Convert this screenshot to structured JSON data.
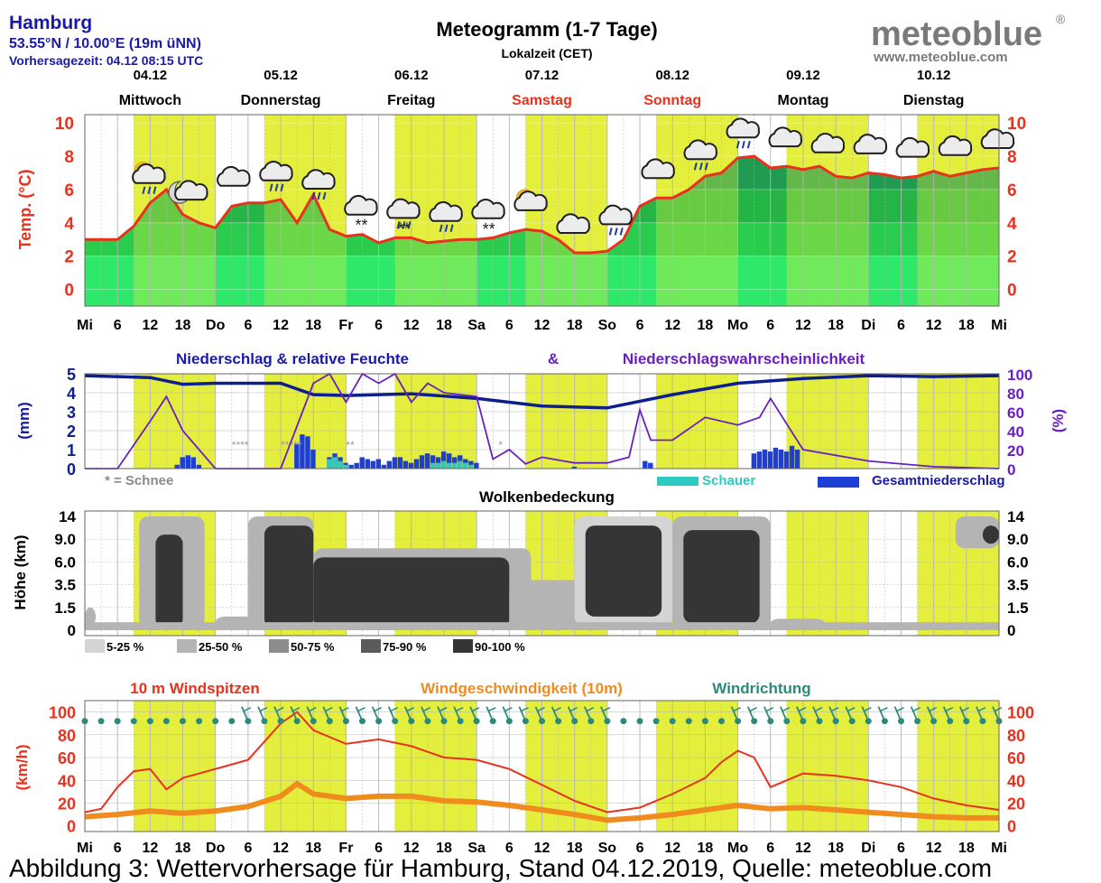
{
  "header": {
    "city": "Hamburg",
    "coords": "53.55°N / 10.00°E (19m üNN)",
    "forecast_time": "Vorhersagezeit: 04.12 08:15 UTC",
    "title": "Meteogramm (1-7 Tage)",
    "subtitle": "Lokalzeit (CET)",
    "brand": "meteoblue",
    "brand_reg": "®",
    "brand_url": "www.meteoblue.com"
  },
  "days": [
    {
      "date": "04.12",
      "name": "Mittwoch",
      "weekend": false
    },
    {
      "date": "05.12",
      "name": "Donnerstag",
      "weekend": false
    },
    {
      "date": "06.12",
      "name": "Freitag",
      "weekend": false
    },
    {
      "date": "07.12",
      "name": "Samstag",
      "weekend": true
    },
    {
      "date": "08.12",
      "name": "Sonntag",
      "weekend": true
    },
    {
      "date": "09.12",
      "name": "Montag",
      "weekend": false
    },
    {
      "date": "10.12",
      "name": "Dienstag",
      "weekend": false
    }
  ],
  "x_ticks": [
    "Mi",
    "6",
    "12",
    "18",
    "Do",
    "6",
    "12",
    "18",
    "Fr",
    "6",
    "12",
    "18",
    "Sa",
    "6",
    "12",
    "18",
    "So",
    "6",
    "12",
    "18",
    "Mo",
    "6",
    "12",
    "18",
    "Di",
    "6",
    "12",
    "18",
    "Mi"
  ],
  "colors": {
    "temp": "#e8321e",
    "day_band": "#e4ee3c",
    "grid": "#b4b4b4",
    "precip_total": "#1d3fd6",
    "showers": "#2ec9c0",
    "humidity": "#0e1f8c",
    "probability": "#6a1fc0",
    "gust": "#e8321e",
    "wind": "#f08c1e",
    "winddir": "#2a8a7c",
    "weekend": "#e8321e",
    "title_blue": "#1a1aa8"
  },
  "chart_data": [
    {
      "type": "area",
      "name": "temperature",
      "ylabel": "Temp. (°C)",
      "ylim": [
        -1,
        10.5
      ],
      "y_ticks": [
        "10",
        "8",
        "6",
        "4",
        "2",
        "0"
      ],
      "x_hours": [
        0,
        3,
        6,
        9,
        12,
        15,
        18,
        21,
        24,
        27,
        30,
        33,
        36,
        39,
        42,
        45,
        48,
        51,
        54,
        57,
        60,
        63,
        66,
        69,
        72,
        75,
        78,
        81,
        84,
        87,
        90,
        93,
        96,
        99,
        102,
        105,
        108,
        111,
        114,
        117,
        120,
        123,
        126,
        129,
        132,
        135,
        138,
        141,
        144,
        147,
        150,
        153,
        156,
        159,
        162,
        165,
        168
      ],
      "values": [
        3.0,
        3.0,
        3.0,
        3.8,
        5.2,
        6.0,
        4.5,
        4.0,
        3.7,
        5.0,
        5.2,
        5.2,
        5.4,
        4.0,
        5.7,
        3.6,
        3.2,
        3.3,
        2.8,
        3.1,
        3.1,
        2.8,
        2.9,
        3.0,
        3.0,
        3.1,
        3.4,
        3.6,
        3.5,
        3.0,
        2.2,
        2.2,
        2.3,
        3.0,
        5.0,
        5.5,
        5.5,
        6.0,
        6.8,
        7.0,
        7.9,
        8.0,
        7.3,
        7.4,
        7.2,
        7.4,
        6.8,
        6.7,
        7.0,
        6.9,
        6.7,
        6.8,
        7.1,
        6.8,
        7.0,
        7.2,
        7.3
      ],
      "weather_icons": [
        "sun-cloud-rain",
        "moon-cloud",
        "cloud",
        "cloud-rain",
        "cloud-rain",
        "cloud-snow",
        "cloud-sleet",
        "cloud-rain",
        "cloud-snow",
        "sun-cloud",
        "cloud",
        "cloud-rain",
        "cloud",
        "cloud-rain",
        "cloud-rain",
        "cloud",
        "cloud",
        "cloud",
        "cloud",
        "cloud",
        "cloud"
      ]
    },
    {
      "type": "bar",
      "name": "precipitation",
      "title_left": "Niederschlag & relative Feuchte",
      "title_amp": "&",
      "title_right": "Niederschlagswahrscheinlichkeit",
      "ylabel_left": "(mm)",
      "ylabel_right": "(%)",
      "ylim": [
        0,
        5
      ],
      "ylim_right": [
        0,
        100
      ],
      "y_ticks_left": [
        "5",
        "4",
        "3",
        "2",
        "1",
        "0"
      ],
      "y_ticks_right": [
        "100",
        "80",
        "60",
        "40",
        "20",
        "0"
      ],
      "snow_note": "* = Schnee",
      "legend": [
        "Schauer",
        "Gesamtniederschlag"
      ],
      "series": [
        {
          "name": "Gesamtniederschlag",
          "x_hours": [
            17,
            18,
            19,
            20,
            21,
            39,
            40,
            41,
            42,
            45,
            46,
            47,
            48,
            49,
            50,
            51,
            52,
            53,
            54,
            55,
            56,
            57,
            58,
            59,
            60,
            61,
            62,
            63,
            64,
            65,
            66,
            67,
            68,
            69,
            70,
            71,
            72,
            90,
            103,
            104,
            123,
            124,
            125,
            126,
            127,
            128,
            129,
            130,
            131
          ],
          "values": [
            0.2,
            0.6,
            0.7,
            0.6,
            0.2,
            1.3,
            1.8,
            1.7,
            1.0,
            0.6,
            0.8,
            0.6,
            0.3,
            0.2,
            0.3,
            0.6,
            0.5,
            0.4,
            0.5,
            0.2,
            0.4,
            0.6,
            0.6,
            0.4,
            0.3,
            0.5,
            0.7,
            0.8,
            0.7,
            0.6,
            0.9,
            0.8,
            0.6,
            0.7,
            0.5,
            0.4,
            0.3,
            0.1,
            0.4,
            0.3,
            0.8,
            0.9,
            1.0,
            0.9,
            1.1,
            1.0,
            0.9,
            1.2,
            1.0
          ]
        },
        {
          "name": "Schauer",
          "x_hours": [
            45,
            46,
            47,
            48,
            64,
            65,
            66,
            67,
            68,
            69,
            70,
            71
          ],
          "values": [
            0.5,
            0.6,
            0.4,
            0.2,
            0.3,
            0.3,
            0.4,
            0.3,
            0.3,
            0.4,
            0.3,
            0.2
          ]
        },
        {
          "name": "relative Feuchte (%)",
          "x_hours": [
            0,
            12,
            18,
            24,
            36,
            42,
            48,
            60,
            72,
            84,
            96,
            108,
            120,
            132,
            144,
            156,
            168
          ],
          "values": [
            98,
            96,
            89,
            90,
            90,
            78,
            77,
            79,
            74,
            66,
            64,
            78,
            90,
            95,
            98,
            97,
            98
          ]
        },
        {
          "name": "Niederschlagswahrscheinlichkeit (%)",
          "x_hours": [
            0,
            6,
            12,
            15,
            18,
            24,
            30,
            36,
            42,
            45,
            48,
            51,
            54,
            57,
            60,
            63,
            66,
            72,
            75,
            78,
            81,
            84,
            88,
            90,
            96,
            100,
            102,
            104,
            108,
            114,
            120,
            124,
            126,
            132,
            144,
            156,
            168
          ],
          "values": [
            0,
            0,
            50,
            76,
            40,
            0,
            0,
            0,
            90,
            100,
            70,
            100,
            90,
            100,
            70,
            90,
            80,
            76,
            10,
            20,
            5,
            12,
            8,
            6,
            6,
            12,
            62,
            30,
            30,
            54,
            46,
            54,
            74,
            20,
            8,
            2,
            0
          ]
        }
      ],
      "snow_hours": [
        "27",
        "30",
        "33",
        "36",
        "39",
        "42",
        "45",
        "48",
        "51",
        "54",
        "57",
        "60",
        "63",
        "66",
        "69",
        "72",
        "75",
        "78",
        "81",
        "84",
        "87",
        "90"
      ],
      "snow_marks": [
        "****",
        "*****",
        "**",
        "*"
      ]
    },
    {
      "type": "heatmap",
      "name": "clouds",
      "title": "Wolkenbedeckung",
      "ylabel": "Höhe (km)",
      "y_ticks": [
        "14",
        "9.0",
        "6.0",
        "3.5",
        "1.5",
        "0"
      ],
      "legend": [
        "5-25 %",
        "25-50 %",
        "50-75 %",
        "75-90 %",
        "90-100 %"
      ],
      "legend_colors": [
        "#d4d4d4",
        "#b4b4b4",
        "#8c8c8c",
        "#5a5a5a",
        "#353535"
      ]
    },
    {
      "type": "line",
      "name": "wind",
      "title_gust": "10 m Windspitzen",
      "title_speed": "Windgeschwindigkeit (10m)",
      "title_dir": "Windrichtung",
      "ylabel": "(km/h)",
      "ylim": [
        -5,
        110
      ],
      "y_ticks": [
        "100",
        "80",
        "60",
        "40",
        "20",
        "0"
      ],
      "series": [
        {
          "name": "10 m Windspitzen",
          "x_hours": [
            0,
            3,
            6,
            9,
            12,
            15,
            18,
            24,
            30,
            36,
            39,
            42,
            48,
            54,
            60,
            66,
            72,
            78,
            84,
            90,
            96,
            102,
            108,
            114,
            117,
            120,
            123,
            126,
            132,
            138,
            144,
            150,
            156,
            162,
            168
          ],
          "values": [
            12,
            15,
            34,
            48,
            50,
            32,
            42,
            50,
            58,
            90,
            100,
            84,
            72,
            76,
            70,
            60,
            58,
            50,
            36,
            22,
            12,
            16,
            28,
            42,
            56,
            66,
            60,
            34,
            46,
            44,
            40,
            34,
            24,
            18,
            14
          ]
        },
        {
          "name": "Windgeschwindigkeit (10m)",
          "x_hours": [
            0,
            6,
            12,
            18,
            24,
            30,
            36,
            39,
            42,
            48,
            54,
            60,
            66,
            72,
            78,
            84,
            90,
            96,
            102,
            108,
            114,
            120,
            126,
            132,
            138,
            144,
            150,
            156,
            162,
            168
          ],
          "values": [
            8,
            10,
            13,
            11,
            13,
            17,
            26,
            37,
            28,
            24,
            26,
            26,
            22,
            21,
            18,
            14,
            10,
            5,
            7,
            10,
            14,
            18,
            15,
            16,
            14,
            12,
            10,
            8,
            7,
            7
          ]
        }
      ]
    }
  ],
  "caption": "Abbildung 3: Wettervorhersage für Hamburg, Stand 04.12.2019, Quelle: meteoblue.com"
}
